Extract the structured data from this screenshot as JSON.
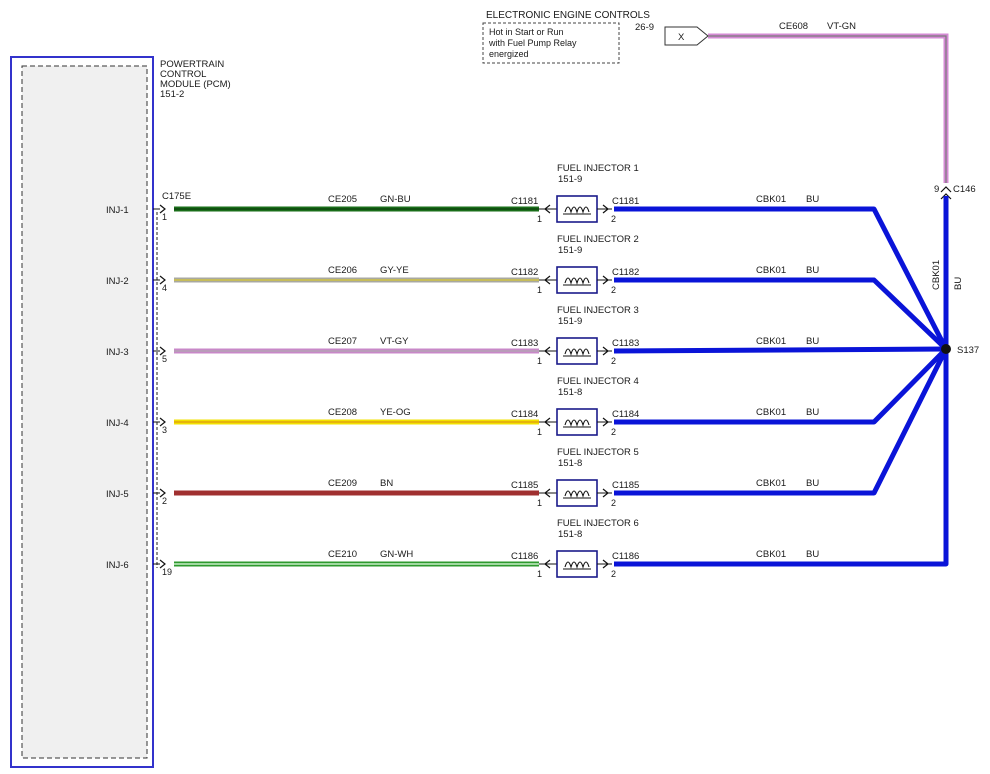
{
  "pcm": {
    "title_lines": [
      "POWERTRAIN",
      "CONTROL",
      "MODULE (PCM)",
      "151-2"
    ],
    "connector": "C175E",
    "colors": {
      "border": "#3333cc",
      "fill": "#f0f0f0"
    }
  },
  "eec": {
    "title": "ELECTRONIC ENGINE CONTROLS",
    "ref": "26-9",
    "note_lines": [
      "Hot in Start or Run",
      "with Fuel Pump Relay",
      "energized"
    ],
    "tag": "X",
    "circuit": "CE608",
    "wire_color": "VT-GN",
    "wire_hex": "#d48ad4"
  },
  "c146": {
    "label": "C146",
    "pin": "9"
  },
  "vertical_feed": {
    "circuit": "CBK01",
    "color": "BU"
  },
  "splice": {
    "label": "S137"
  },
  "ground_hex": "#0a14d8",
  "injectors": [
    {
      "pcm_pin_label": "INJ-1",
      "pcm_pin": "1",
      "circuit": "CE205",
      "wire_color": "GN-BU",
      "wire_hex": [
        "#1a6e1a",
        "#0a3f0a"
      ],
      "in_connector": "C1181",
      "in_pin": "1",
      "title": "FUEL INJECTOR 1",
      "ref": "151-9",
      "out_connector": "C1181",
      "out_pin": "2",
      "ground_circuit": "CBK01",
      "ground_color": "BU"
    },
    {
      "pcm_pin_label": "INJ-2",
      "pcm_pin": "4",
      "circuit": "CE206",
      "wire_color": "GY-YE",
      "wire_hex": [
        "#a8a8a0",
        "#d8c832"
      ],
      "in_connector": "C1182",
      "in_pin": "1",
      "title": "FUEL INJECTOR 2",
      "ref": "151-9",
      "out_connector": "C1182",
      "out_pin": "2",
      "ground_circuit": "CBK01",
      "ground_color": "BU"
    },
    {
      "pcm_pin_label": "INJ-3",
      "pcm_pin": "5",
      "circuit": "CE207",
      "wire_color": "VT-GY",
      "wire_hex": [
        "#c888c8",
        "#b0a8b0"
      ],
      "in_connector": "C1183",
      "in_pin": "1",
      "title": "FUEL INJECTOR 3",
      "ref": "151-9",
      "out_connector": "C1183",
      "out_pin": "2",
      "ground_circuit": "CBK01",
      "ground_color": "BU"
    },
    {
      "pcm_pin_label": "INJ-4",
      "pcm_pin": "3",
      "circuit": "CE208",
      "wire_color": "YE-OG",
      "wire_hex": [
        "#f2e000",
        "#e09a10"
      ],
      "in_connector": "C1184",
      "in_pin": "1",
      "title": "FUEL INJECTOR 4",
      "ref": "151-8",
      "out_connector": "C1184",
      "out_pin": "2",
      "ground_circuit": "CBK01",
      "ground_color": "BU"
    },
    {
      "pcm_pin_label": "INJ-5",
      "pcm_pin": "2",
      "circuit": "CE209",
      "wire_color": "BN",
      "wire_hex": [
        "#a03030",
        "#a03030"
      ],
      "in_connector": "C1185",
      "in_pin": "1",
      "title": "FUEL INJECTOR 5",
      "ref": "151-8",
      "out_connector": "C1185",
      "out_pin": "2",
      "ground_circuit": "CBK01",
      "ground_color": "BU"
    },
    {
      "pcm_pin_label": "INJ-6",
      "pcm_pin": "19",
      "circuit": "CE210",
      "wire_color": "GN-WH",
      "wire_hex": [
        "#2e9a2e",
        "#e8ffe8"
      ],
      "in_connector": "C1186",
      "in_pin": "1",
      "title": "FUEL INJECTOR 6",
      "ref": "151-8",
      "out_connector": "C1186",
      "out_pin": "2",
      "ground_circuit": "CBK01",
      "ground_color": "BU"
    }
  ]
}
